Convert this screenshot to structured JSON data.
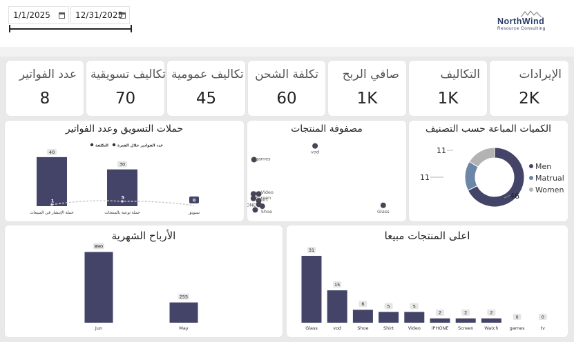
{
  "filters": {
    "start_date": "1/1/2025",
    "end_date": "12/31/2025",
    "start_icon": "calendar-icon",
    "end_icon": "calendar-icon"
  },
  "logo": {
    "main": "NorthWind",
    "sub": "Resource Consulting"
  },
  "kpis": [
    {
      "label": "الإيرادات",
      "value": "2K"
    },
    {
      "label": "التكاليف",
      "value": "1K"
    },
    {
      "label": "صافي الربح",
      "value": "1K"
    },
    {
      "label": "تكلفة الشحن",
      "value": "60"
    },
    {
      "label": "تكاليف عمومية",
      "value": "45"
    },
    {
      "label": "تكاليف تسويقية",
      "value": "70"
    },
    {
      "label": "عدد الفواتير",
      "value": "8"
    }
  ],
  "colors": {
    "bar": "#434467",
    "line": "#c8c8c8",
    "men": "#434467",
    "matrual": "#6c86a8",
    "women": "#b3b3b3"
  },
  "chart_data": [
    {
      "type": "donut",
      "title": "الكميات المباعة حسب التصنيف",
      "categories": [
        "Men",
        "Matrual",
        "Women"
      ],
      "values": [
        46,
        11,
        11
      ],
      "legend": "right"
    },
    {
      "type": "scatter",
      "title": "مصفوفة المنتجات",
      "points": [
        {
          "label": "vod",
          "x": 10.5,
          "y": 15
        },
        {
          "label": "games",
          "x": 0.2,
          "y": 12
        },
        {
          "label": "tv",
          "x": 0.1,
          "y": 4.5
        },
        {
          "label": "Video",
          "x": 1.0,
          "y": 4.5
        },
        {
          "label": "Screen",
          "x": 0.1,
          "y": 3.5
        },
        {
          "label": "Shirt",
          "x": 1.0,
          "y": 3.0
        },
        {
          "label": "IPHONE",
          "x": 1.0,
          "y": 2.2
        },
        {
          "label": "Shoe",
          "x": 1.6,
          "y": 1.8
        },
        {
          "label": "Watch",
          "x": 0.4,
          "y": 1.0
        },
        {
          "label": "Glass",
          "x": 22.0,
          "y": 2.0
        }
      ]
    },
    {
      "type": "bar+line",
      "title": "حملات التسويق وعدد الفواتير",
      "legend_series": [
        "عدد الفواتير خلال الفترة",
        "التكلفة"
      ],
      "categories": [
        "حملة الإنتشار في المبيعات",
        "حملة توعية بالمنتجات",
        "تسويق"
      ],
      "cost": [
        40,
        30,
        0
      ],
      "invoices": [
        1,
        5,
        0
      ],
      "ylim": [
        0,
        45
      ]
    },
    {
      "type": "bar",
      "title": "الأرباح الشهرية",
      "categories": [
        "Jun",
        "May"
      ],
      "values": [
        890,
        255
      ],
      "ylim": [
        0,
        1000
      ]
    },
    {
      "type": "bar",
      "title": "اعلى المنتجات مبيعا",
      "categories": [
        "Glass",
        "vod",
        "Shoe",
        "Shirt",
        "Video",
        "IPHONE",
        "Screen",
        "Watch",
        "games",
        "tv"
      ],
      "values": [
        31,
        15,
        6,
        5,
        5,
        2,
        2,
        2,
        0,
        0
      ],
      "ylim": [
        0,
        34
      ]
    }
  ]
}
